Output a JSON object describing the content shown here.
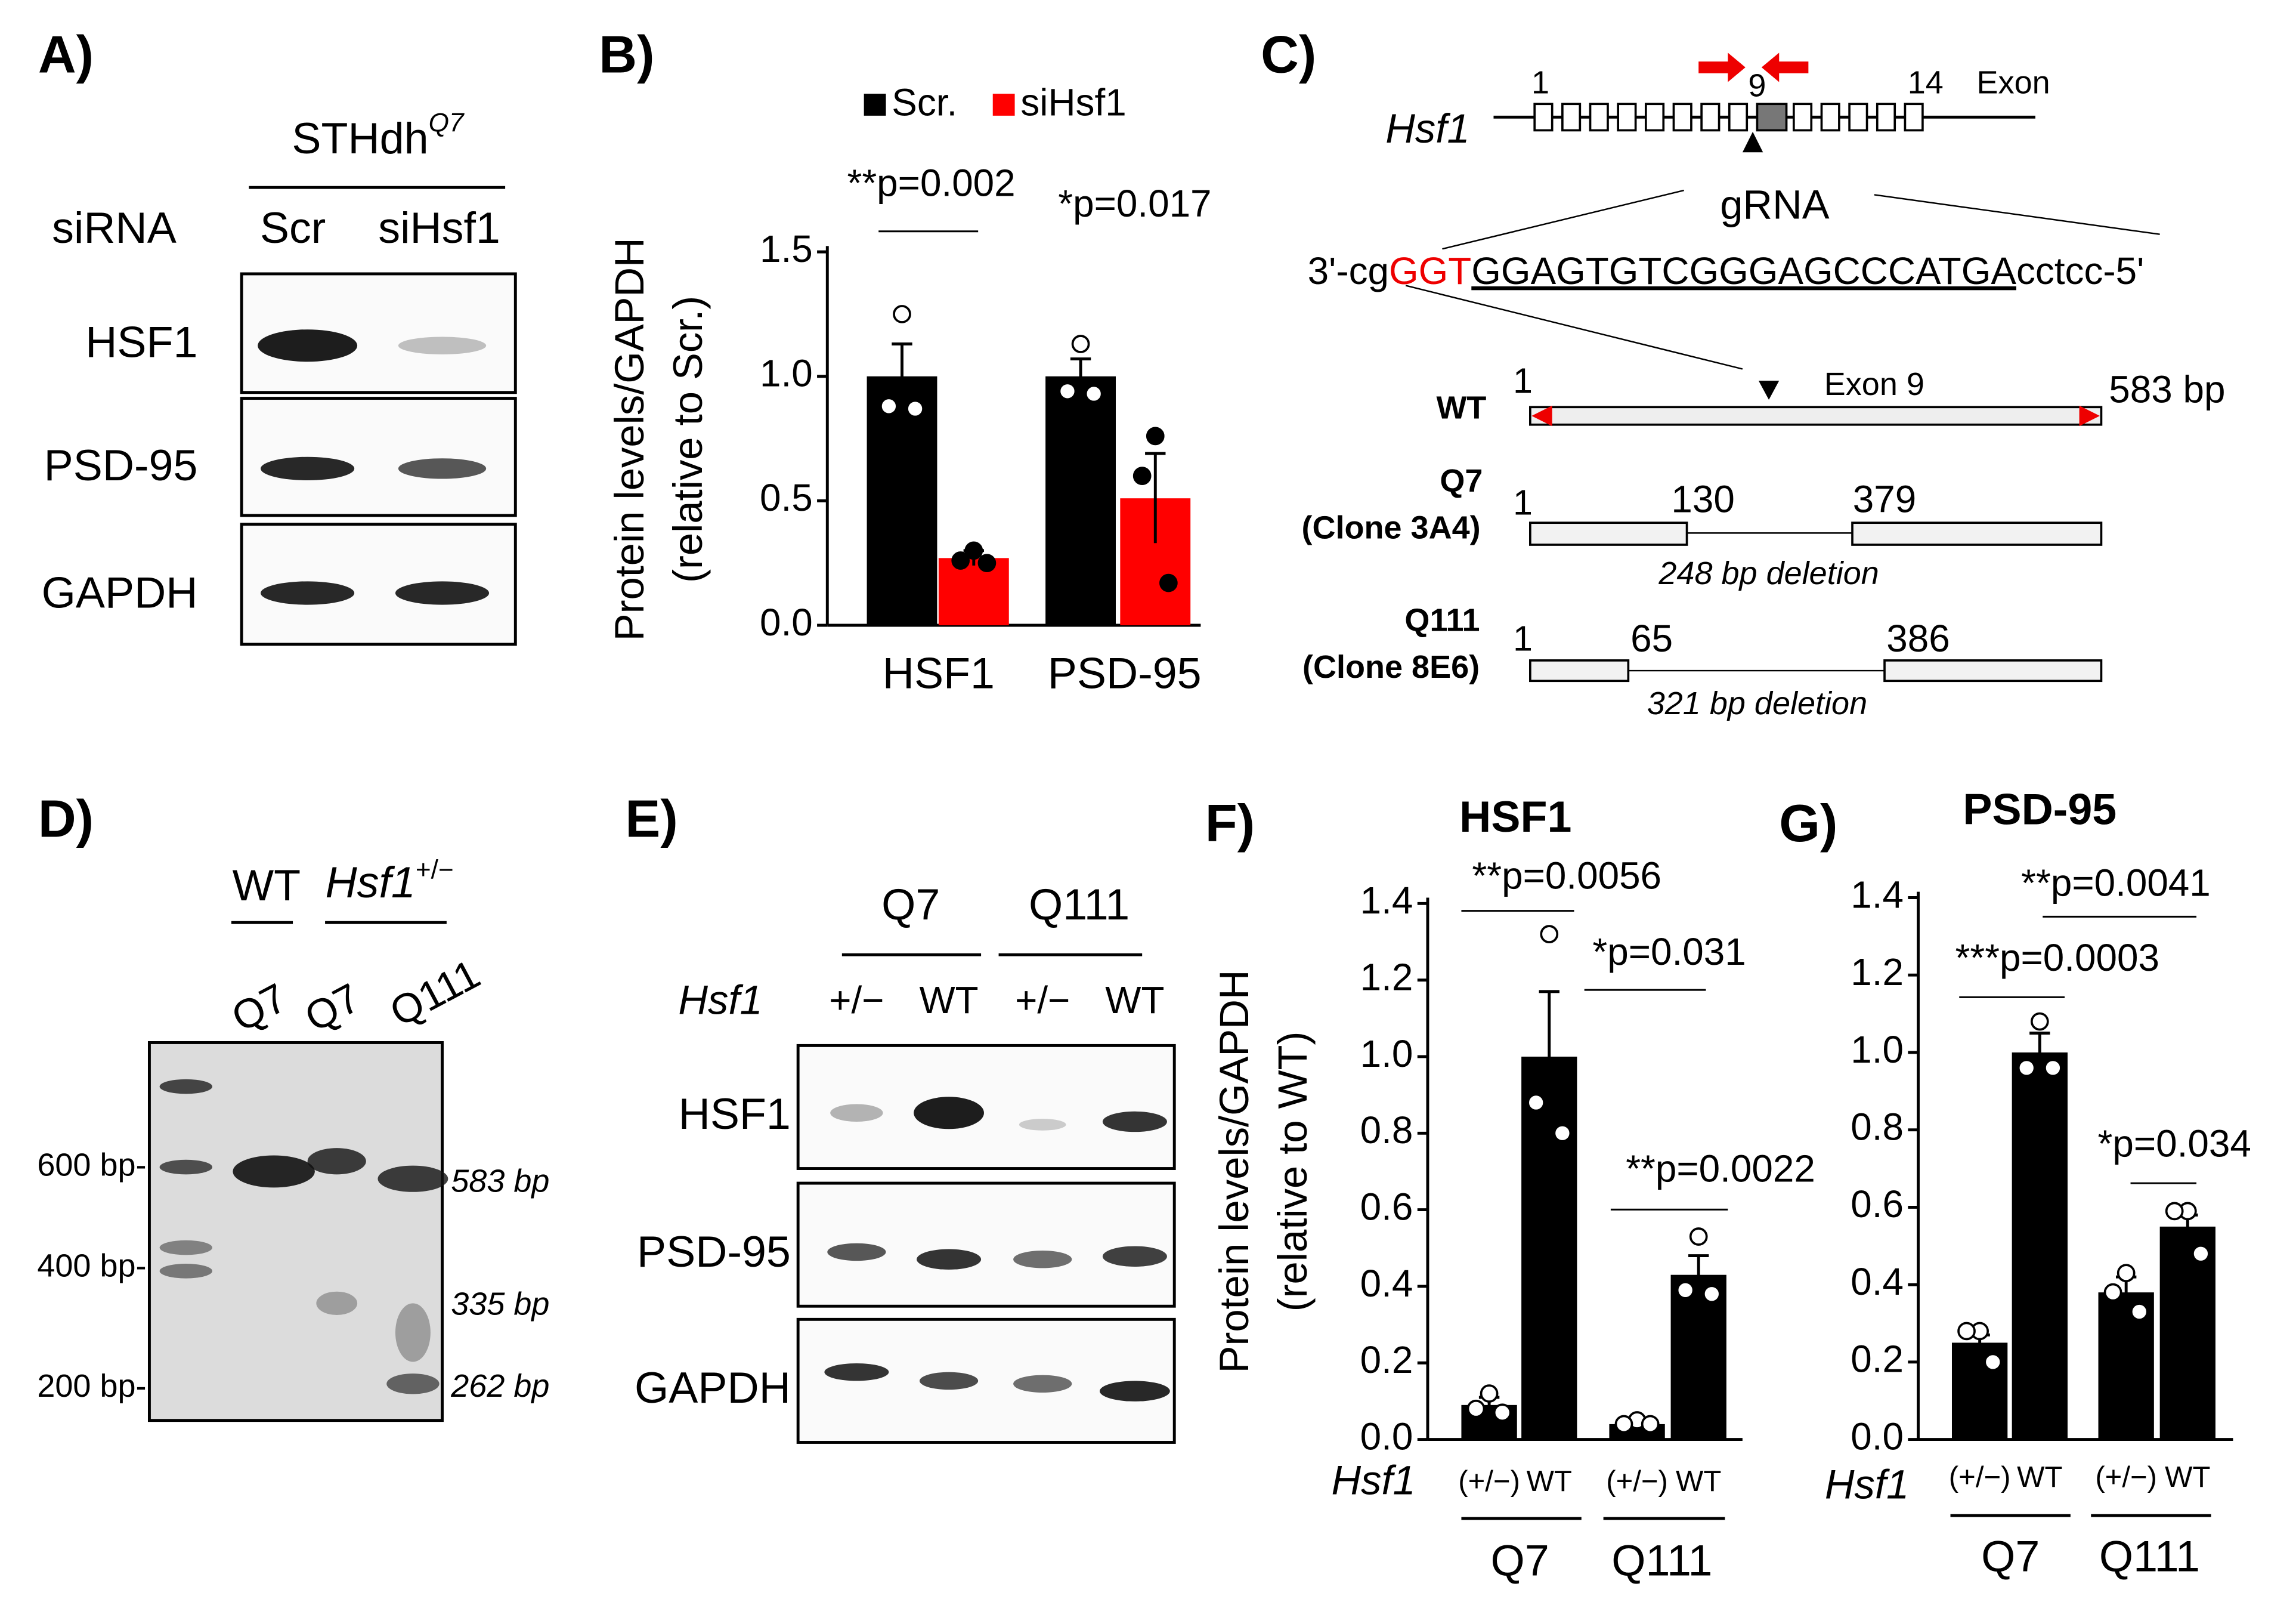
{
  "panel_labels": [
    "A)",
    "B)",
    "C)",
    "D)",
    "E)",
    "F)",
    "G)"
  ],
  "panel_a": {
    "cell_line": "STHdh",
    "cell_line_sup": "Q7",
    "row_header": "siRNA",
    "lanes": [
      "Scr",
      "siHsf1"
    ],
    "blots": [
      "HSF1",
      "PSD-95",
      "GAPDH"
    ]
  },
  "panel_c": {
    "gene": "Hsf1",
    "exon_numbers": [
      "1",
      "9",
      "14"
    ],
    "exon_label": "Exon",
    "grna_label": "gRNA",
    "sequence": [
      "3'-cg",
      "GGT",
      "GGAGTGTCGGGAGCCCATGA",
      "cctcc-5'"
    ],
    "constructs": [
      {
        "name": "WT",
        "start": "1",
        "exon_label": "Exon 9",
        "length": "583 bp"
      },
      {
        "name": "Q7",
        "clone": "(Clone 3A4)",
        "start": "1",
        "cut": [
          "130",
          "379"
        ],
        "deletion": "248 bp deletion"
      },
      {
        "name": "Q111",
        "clone": "(Clone 8E6)",
        "start": "1",
        "cut": [
          "65",
          "386"
        ],
        "deletion": "321 bp deletion"
      }
    ]
  },
  "panel_d": {
    "group_wt": "WT",
    "group_het": "Hsf1",
    "group_het_sup": "+/−",
    "lanes": [
      "Q7",
      "Q7",
      "Q111"
    ],
    "ladder": [
      "600 bp-",
      "400 bp-",
      "200 bp-"
    ],
    "bands": [
      "583 bp",
      "335 bp",
      "262 bp"
    ]
  },
  "panel_e": {
    "groups": [
      "Q7",
      "Q111"
    ],
    "row_label": "Hsf1",
    "lanes": [
      "+/−",
      "WT",
      "+/−",
      "WT"
    ],
    "blots": [
      "HSF1",
      "PSD-95",
      "GAPDH"
    ]
  },
  "chart_data": [
    {
      "type": "bar",
      "ylabel": [
        "Protein levels/GAPDH",
        "(relative to Scr.)"
      ],
      "categories": [
        "HSF1",
        "PSD-95"
      ],
      "series": [
        {
          "name": "Scr.",
          "color": "#000000",
          "values": [
            1.0,
            1.0
          ],
          "errors": [
            0.13,
            0.07
          ],
          "points": [
            [
              1.25,
              0.88,
              0.87
            ],
            [
              1.13,
              0.94,
              0.93
            ]
          ]
        },
        {
          "name": "siHsf1",
          "color": "#ff0000",
          "values": [
            0.27,
            0.51
          ],
          "errors": [
            0.03,
            0.18
          ],
          "points": [
            [
              0.3,
              0.26,
              0.25
            ],
            [
              0.76,
              0.6,
              0.17
            ]
          ]
        }
      ],
      "ylim": [
        0,
        1.5
      ],
      "yticks": [
        {
          "value": 0,
          "label": "0.0"
        },
        0.5,
        {
          "value": 1,
          "label": "1.0"
        },
        1.5
      ],
      "legend": "top",
      "annotations": [
        "**p=0.002",
        "*p=0.017"
      ]
    },
    {
      "type": "bar",
      "title": "HSF1",
      "ylabel": [
        "Protein levels/GAPDH",
        "(relative to WT)"
      ],
      "row_label": "Hsf1",
      "categories": [
        "(+/−)",
        "WT",
        "(+/−)",
        "WT"
      ],
      "groups": [
        "Q7",
        "Q111"
      ],
      "series": [
        {
          "color": "#000000",
          "values": [
            0.09,
            1.0,
            0.04,
            0.43
          ],
          "errors": [
            0.02,
            0.17,
            0.01,
            0.05
          ],
          "points": [
            [
              0.12,
              0.08,
              0.07
            ],
            [
              1.32,
              0.88,
              0.8
            ],
            [
              0.05,
              0.04,
              0.04
            ],
            [
              0.53,
              0.39,
              0.38
            ]
          ]
        }
      ],
      "ylim": [
        0,
        1.4
      ],
      "yticks": [
        {
          "value": 0,
          "label": "0.0"
        },
        0.2,
        0.4,
        0.6,
        0.8,
        {
          "value": 1,
          "label": "1.0"
        },
        1.2,
        1.4
      ],
      "annotations": [
        "**p=0.0056",
        "*p=0.031",
        "**p=0.0022"
      ]
    },
    {
      "type": "bar",
      "title": "PSD-95",
      "row_label": "Hsf1",
      "categories": [
        "(+/−)",
        "WT",
        "(+/−)",
        "WT"
      ],
      "groups": [
        "Q7",
        "Q111"
      ],
      "series": [
        {
          "color": "#000000",
          "values": [
            0.25,
            1.0,
            0.38,
            0.55
          ],
          "errors": [
            0.02,
            0.05,
            0.04,
            0.03
          ],
          "points": [
            [
              0.28,
              0.28,
              0.2
            ],
            [
              1.08,
              0.96,
              0.96
            ],
            [
              0.43,
              0.38,
              0.33
            ],
            [
              0.59,
              0.59,
              0.48
            ]
          ]
        }
      ],
      "ylim": [
        0,
        1.4
      ],
      "yticks": [
        {
          "value": 0,
          "label": "0.0"
        },
        0.2,
        0.4,
        0.6,
        0.8,
        {
          "value": 1,
          "label": "1.0"
        },
        1.2,
        1.4
      ],
      "annotations": [
        "**p=0.0041",
        "***p=0.0003",
        "*p=0.034"
      ]
    }
  ]
}
